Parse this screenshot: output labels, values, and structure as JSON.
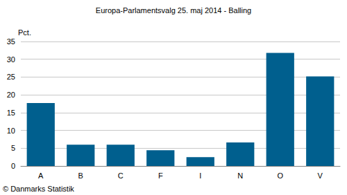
{
  "chart_data": {
    "type": "bar",
    "title": "Europa-Parlamentsvalg 25. maj 2014 - Balling",
    "y_label": "Pct.",
    "categories": [
      "A",
      "B",
      "C",
      "F",
      "I",
      "N",
      "O",
      "V"
    ],
    "values": [
      17.7,
      6.0,
      6.0,
      4.4,
      2.5,
      6.6,
      31.8,
      25.2
    ],
    "color": "#005f8e",
    "ylim": [
      0,
      35
    ],
    "yticks": [
      0,
      5,
      10,
      15,
      20,
      25,
      30,
      35
    ],
    "grid": true,
    "annotations": [
      "© Danmarks Statistik"
    ]
  }
}
